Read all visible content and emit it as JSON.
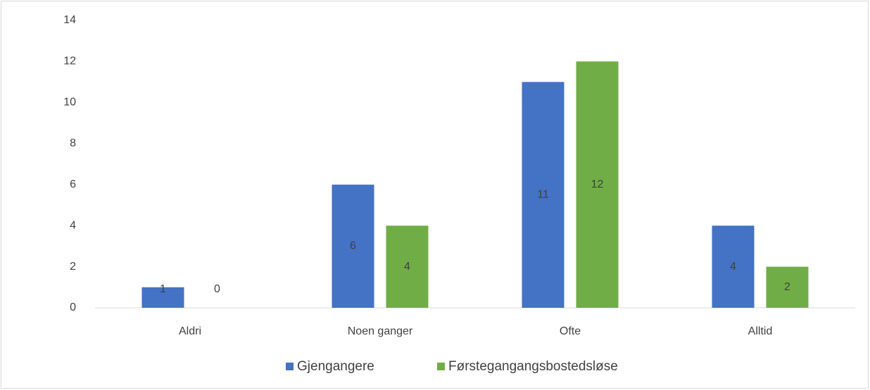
{
  "chart_data": {
    "type": "bar",
    "categories": [
      "Aldri",
      "Noen ganger",
      "Ofte",
      "Alltid"
    ],
    "series": [
      {
        "name": "Gjengangere",
        "color": "#4472c4",
        "values": [
          1,
          6,
          11,
          4
        ]
      },
      {
        "name": "Førstegangangsbostedsløse",
        "color": "#70ad47",
        "values": [
          0,
          4,
          12,
          2
        ]
      }
    ],
    "ylim": [
      0,
      14
    ],
    "yticks": [
      0,
      2,
      4,
      6,
      8,
      10,
      12,
      14
    ],
    "grid": false,
    "legend": "bottom"
  }
}
